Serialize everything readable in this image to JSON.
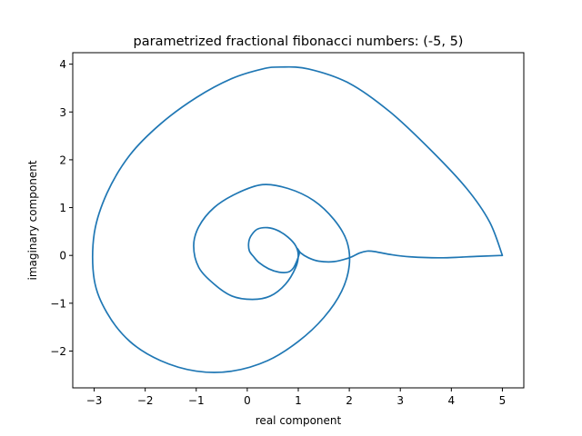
{
  "chart_data": {
    "type": "line",
    "title": "parametrized fractional fibonacci numbers: (-5, 5)",
    "xlabel": "real component",
    "ylabel": "imaginary component",
    "xlim": [
      -3.42,
      5.42
    ],
    "ylim": [
      -2.77,
      4.24
    ],
    "xticks": [
      -3,
      -2,
      -1,
      0,
      1,
      2,
      3,
      4,
      5
    ],
    "yticks": [
      -2,
      -1,
      0,
      1,
      2,
      3,
      4
    ],
    "xtick_labels": [
      "−3",
      "−2",
      "−1",
      "0",
      "1",
      "2",
      "3",
      "4",
      "5"
    ],
    "ytick_labels": [
      "−2",
      "−1",
      "0",
      "1",
      "2",
      "3",
      "4"
    ],
    "grid": false,
    "series": [
      {
        "color": "#1f77b4",
        "x": [
          5.0,
          4.5,
          3.8,
          3.2,
          2.8,
          2.5,
          2.35,
          2.2,
          2.0,
          1.7,
          1.4,
          1.2,
          1.05,
          0.98,
          1.02,
          0.97,
          0.9,
          0.8,
          0.62,
          0.42,
          0.23,
          0.12,
          0.04,
          0.03,
          0.08,
          0.2,
          0.4,
          0.6,
          0.8,
          0.95,
          1.0,
          0.95,
          0.75,
          0.45,
          0.1,
          -0.3,
          -0.65,
          -0.95,
          -1.05,
          -0.95,
          -0.65,
          -0.2,
          0.3,
          0.8,
          1.3,
          1.7,
          1.95,
          2.0,
          1.85,
          1.5,
          1.0,
          0.4,
          -0.3,
          -1.0,
          -1.7,
          -2.3,
          -2.75,
          -3.0,
          -3.0,
          -2.75,
          -2.3,
          -1.7,
          -1.0,
          -0.3,
          0.3,
          0.65,
          1.2,
          2.0,
          2.8,
          3.6,
          4.3,
          4.75,
          5.0
        ],
        "y": [
          0.0,
          -0.02,
          -0.05,
          -0.03,
          0.02,
          0.08,
          0.09,
          0.05,
          -0.05,
          -0.13,
          -0.12,
          -0.05,
          0.05,
          0.15,
          0.05,
          -0.12,
          -0.27,
          -0.35,
          -0.35,
          -0.28,
          -0.15,
          -0.02,
          0.1,
          0.28,
          0.42,
          0.55,
          0.58,
          0.52,
          0.38,
          0.2,
          0.0,
          -0.25,
          -0.6,
          -0.85,
          -0.92,
          -0.85,
          -0.6,
          -0.25,
          0.2,
          0.6,
          1.0,
          1.3,
          1.48,
          1.4,
          1.15,
          0.75,
          0.3,
          -0.2,
          -0.75,
          -1.3,
          -1.8,
          -2.2,
          -2.42,
          -2.42,
          -2.2,
          -1.8,
          -1.2,
          -0.5,
          0.45,
          1.3,
          2.1,
          2.75,
          3.3,
          3.7,
          3.9,
          3.94,
          3.9,
          3.6,
          3.0,
          2.2,
          1.4,
          0.7,
          0.0
        ]
      }
    ]
  }
}
